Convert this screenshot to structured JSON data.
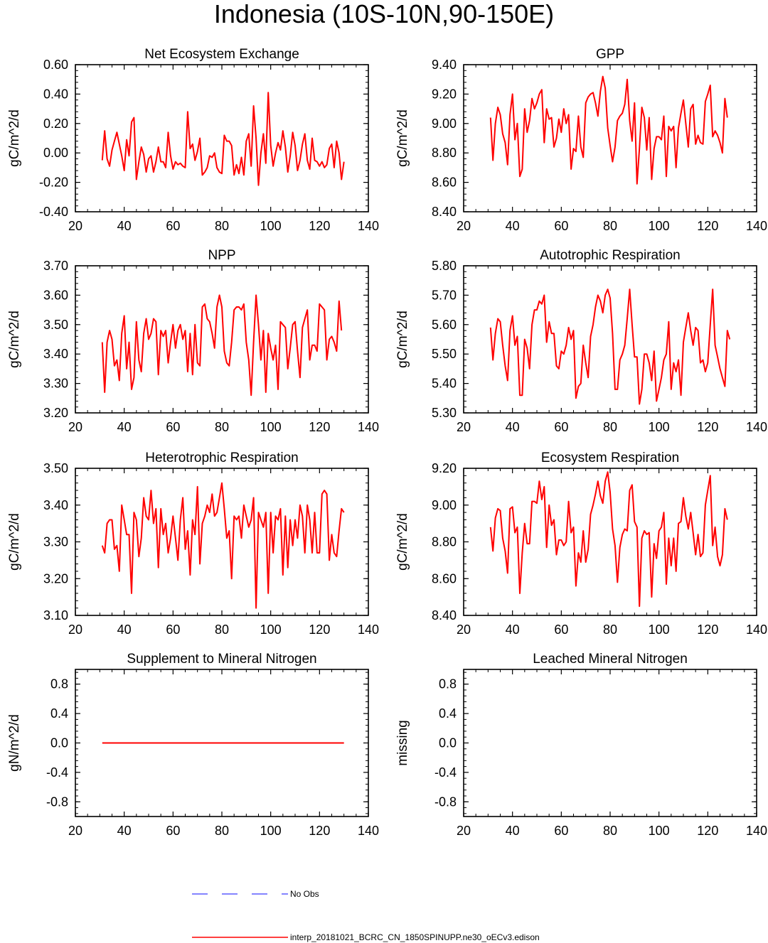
{
  "figure_title": "Indonesia (10S-10N,90-150E)",
  "legend": {
    "obs_label": "No Obs",
    "obs_color": "#3b3bff",
    "model_label": "interp_20181021_BCRC_CN_1850SPINUPP.ne30_oECv3.edison",
    "model_color": "#ff0000"
  },
  "chart_data": [
    {
      "type": "line",
      "title": "Net Ecosystem Exchange",
      "xlabel": "",
      "ylabel": "gC/m^2/d",
      "xlim": [
        20,
        140
      ],
      "ylim": [
        -0.4,
        0.6
      ],
      "xticks": [
        20,
        40,
        60,
        80,
        100,
        120,
        140
      ],
      "xtick_labels": [
        "20",
        "40",
        "60",
        "80",
        "100",
        "120",
        "140"
      ],
      "yticks": [
        -0.4,
        -0.2,
        0.0,
        0.2,
        0.4,
        0.6
      ],
      "ytick_labels": [
        "-0.40",
        "-0.20",
        "0.00",
        "0.20",
        "0.40",
        "0.60"
      ],
      "series": [
        {
          "name": "model",
          "x_start": 31,
          "values": [
            -0.05,
            0.15,
            -0.04,
            -0.09,
            0.02,
            0.08,
            0.14,
            0.06,
            -0.02,
            -0.12,
            0.09,
            -0.02,
            0.21,
            0.24,
            -0.18,
            -0.06,
            0.04,
            -0.01,
            -0.13,
            -0.04,
            -0.02,
            -0.13,
            -0.06,
            0.04,
            -0.06,
            -0.06,
            -0.1,
            0.14,
            -0.02,
            -0.11,
            -0.06,
            -0.08,
            -0.07,
            -0.09,
            -0.1,
            0.28,
            0.03,
            0.06,
            -0.05,
            0.01,
            0.1,
            -0.15,
            -0.13,
            -0.1,
            -0.02,
            -0.03,
            0.0,
            -0.1,
            -0.13,
            -0.14,
            0.12,
            0.08,
            0.08,
            0.05,
            -0.15,
            -0.08,
            -0.14,
            -0.03,
            -0.15,
            0.08,
            0.13,
            -0.09,
            0.32,
            0.1,
            -0.22,
            0.0,
            0.13,
            -0.07,
            0.41,
            0.05,
            -0.09,
            0.0,
            0.07,
            0.02,
            0.15,
            0.04,
            -0.13,
            -0.02,
            0.14,
            0.05,
            -0.12,
            -0.05,
            0.06,
            0.13,
            -0.05,
            -0.11,
            0.1,
            -0.05,
            -0.06,
            -0.09,
            -0.06,
            -0.1,
            -0.08,
            0.03,
            0.06,
            -0.1,
            0.08,
            0.0,
            -0.18,
            -0.06
          ]
        }
      ]
    },
    {
      "type": "line",
      "title": "GPP",
      "xlabel": "",
      "ylabel": "gC/m^2/d",
      "xlim": [
        20,
        140
      ],
      "ylim": [
        8.4,
        9.4
      ],
      "xticks": [
        20,
        40,
        60,
        80,
        100,
        120,
        140
      ],
      "xtick_labels": [
        "20",
        "40",
        "60",
        "80",
        "100",
        "120",
        "140"
      ],
      "yticks": [
        8.4,
        8.6,
        8.8,
        9.0,
        9.2,
        9.4
      ],
      "ytick_labels": [
        "8.40",
        "8.60",
        "8.80",
        "9.00",
        "9.20",
        "9.40"
      ],
      "series": [
        {
          "name": "model",
          "x_start": 31,
          "values": [
            9.04,
            8.75,
            9.0,
            9.11,
            9.06,
            8.93,
            8.87,
            8.72,
            9.06,
            9.2,
            8.89,
            9.0,
            8.64,
            8.69,
            9.1,
            8.94,
            9.02,
            9.17,
            9.1,
            9.14,
            9.2,
            9.23,
            8.87,
            9.1,
            9.03,
            9.04,
            8.84,
            8.9,
            9.03,
            8.94,
            9.1,
            9.0,
            9.06,
            8.69,
            8.83,
            8.81,
            9.05,
            8.84,
            8.77,
            9.14,
            9.18,
            9.2,
            9.21,
            9.14,
            9.05,
            9.22,
            9.32,
            9.24,
            8.97,
            8.85,
            8.74,
            8.84,
            9.02,
            9.05,
            9.07,
            9.13,
            9.3,
            9.02,
            8.88,
            9.14,
            8.59,
            8.83,
            9.11,
            9.04,
            8.82,
            9.04,
            8.62,
            8.83,
            8.91,
            8.91,
            8.89,
            9.05,
            8.64,
            8.98,
            8.95,
            8.98,
            8.7,
            8.97,
            9.07,
            9.16,
            9.0,
            8.84,
            9.1,
            9.13,
            8.86,
            8.92,
            8.87,
            8.86,
            9.15,
            9.2,
            9.26,
            8.91,
            8.95,
            8.92,
            8.87,
            8.8,
            9.17,
            9.04
          ]
        }
      ]
    },
    {
      "type": "line",
      "title": "NPP",
      "xlabel": "",
      "ylabel": "gC/m^2/d",
      "xlim": [
        20,
        140
      ],
      "ylim": [
        3.2,
        3.7
      ],
      "xticks": [
        20,
        40,
        60,
        80,
        100,
        120,
        140
      ],
      "xtick_labels": [
        "20",
        "40",
        "60",
        "80",
        "100",
        "120",
        "140"
      ],
      "yticks": [
        3.2,
        3.3,
        3.4,
        3.5,
        3.6,
        3.7
      ],
      "ytick_labels": [
        "3.20",
        "3.30",
        "3.40",
        "3.50",
        "3.60",
        "3.70"
      ],
      "series": [
        {
          "name": "model",
          "x_start": 31,
          "values": [
            3.44,
            3.27,
            3.44,
            3.48,
            3.45,
            3.36,
            3.38,
            3.31,
            3.47,
            3.53,
            3.35,
            3.44,
            3.28,
            3.32,
            3.51,
            3.38,
            3.34,
            3.47,
            3.52,
            3.45,
            3.47,
            3.52,
            3.51,
            3.33,
            3.48,
            3.46,
            3.48,
            3.37,
            3.44,
            3.5,
            3.42,
            3.48,
            3.5,
            3.45,
            3.48,
            3.34,
            3.47,
            3.33,
            3.5,
            3.37,
            3.36,
            3.56,
            3.57,
            3.52,
            3.51,
            3.47,
            3.42,
            3.56,
            3.6,
            3.56,
            3.41,
            3.37,
            3.36,
            3.44,
            3.55,
            3.56,
            3.56,
            3.55,
            3.57,
            3.44,
            3.38,
            3.26,
            3.44,
            3.6,
            3.5,
            3.38,
            3.48,
            3.27,
            3.47,
            3.42,
            3.38,
            3.43,
            3.28,
            3.51,
            3.5,
            3.49,
            3.35,
            3.42,
            3.5,
            3.51,
            3.41,
            3.32,
            3.49,
            3.52,
            3.55,
            3.38,
            3.43,
            3.43,
            3.41,
            3.57,
            3.56,
            3.55,
            3.38,
            3.45,
            3.46,
            3.44,
            3.41,
            3.58,
            3.48
          ]
        }
      ]
    },
    {
      "type": "line",
      "title": "Autotrophic Respiration",
      "xlabel": "",
      "ylabel": "gC/m^2/d",
      "xlim": [
        20,
        140
      ],
      "ylim": [
        5.3,
        5.8
      ],
      "xticks": [
        20,
        40,
        60,
        80,
        100,
        120,
        140
      ],
      "xtick_labels": [
        "20",
        "40",
        "60",
        "80",
        "100",
        "120",
        "140"
      ],
      "yticks": [
        5.3,
        5.4,
        5.5,
        5.6,
        5.7,
        5.8
      ],
      "ytick_labels": [
        "5.30",
        "5.40",
        "5.50",
        "5.60",
        "5.70",
        "5.80"
      ],
      "series": [
        {
          "name": "model",
          "x_start": 31,
          "values": [
            5.59,
            5.48,
            5.57,
            5.62,
            5.61,
            5.53,
            5.46,
            5.41,
            5.58,
            5.63,
            5.53,
            5.56,
            5.36,
            5.36,
            5.55,
            5.52,
            5.45,
            5.6,
            5.65,
            5.65,
            5.68,
            5.67,
            5.7,
            5.54,
            5.61,
            5.57,
            5.57,
            5.46,
            5.45,
            5.51,
            5.5,
            5.53,
            5.59,
            5.55,
            5.58,
            5.35,
            5.39,
            5.4,
            5.53,
            5.47,
            5.42,
            5.56,
            5.6,
            5.66,
            5.7,
            5.68,
            5.64,
            5.7,
            5.72,
            5.69,
            5.57,
            5.38,
            5.38,
            5.48,
            5.5,
            5.53,
            5.62,
            5.72,
            5.6,
            5.49,
            5.49,
            5.33,
            5.38,
            5.5,
            5.5,
            5.47,
            5.41,
            5.51,
            5.34,
            5.38,
            5.42,
            5.48,
            5.5,
            5.61,
            5.38,
            5.47,
            5.44,
            5.48,
            5.36,
            5.54,
            5.59,
            5.64,
            5.58,
            5.53,
            5.59,
            5.58,
            5.47,
            5.48,
            5.44,
            5.47,
            5.6,
            5.72,
            5.53,
            5.49,
            5.45,
            5.42,
            5.39,
            5.58,
            5.55
          ]
        }
      ]
    },
    {
      "type": "line",
      "title": "Heterotrophic Respiration",
      "xlabel": "",
      "ylabel": "gC/m^2/d",
      "xlim": [
        20,
        140
      ],
      "ylim": [
        3.1,
        3.5
      ],
      "xticks": [
        20,
        40,
        60,
        80,
        100,
        120,
        140
      ],
      "xtick_labels": [
        "20",
        "40",
        "60",
        "80",
        "100",
        "120",
        "140"
      ],
      "yticks": [
        3.1,
        3.2,
        3.3,
        3.4,
        3.5
      ],
      "ytick_labels": [
        "3.10",
        "3.20",
        "3.30",
        "3.40",
        "3.50"
      ],
      "series": [
        {
          "name": "model",
          "x_start": 31,
          "values": [
            3.29,
            3.27,
            3.35,
            3.36,
            3.36,
            3.28,
            3.29,
            3.22,
            3.4,
            3.36,
            3.32,
            3.32,
            3.16,
            3.38,
            3.36,
            3.26,
            3.31,
            3.42,
            3.37,
            3.36,
            3.44,
            3.35,
            3.39,
            3.23,
            3.39,
            3.32,
            3.35,
            3.27,
            3.31,
            3.37,
            3.31,
            3.25,
            3.36,
            3.42,
            3.28,
            3.33,
            3.21,
            3.36,
            3.32,
            3.45,
            3.24,
            3.35,
            3.37,
            3.4,
            3.38,
            3.43,
            3.37,
            3.38,
            3.42,
            3.46,
            3.39,
            3.31,
            3.33,
            3.2,
            3.37,
            3.36,
            3.37,
            3.31,
            3.4,
            3.37,
            3.34,
            3.36,
            3.42,
            3.12,
            3.38,
            3.36,
            3.34,
            3.38,
            3.16,
            3.38,
            3.27,
            3.37,
            3.36,
            3.39,
            3.21,
            3.37,
            3.23,
            3.36,
            3.29,
            3.36,
            3.31,
            3.4,
            3.37,
            3.27,
            3.4,
            3.36,
            3.27,
            3.38,
            3.27,
            3.27,
            3.43,
            3.44,
            3.43,
            3.25,
            3.32,
            3.27,
            3.26,
            3.33,
            3.39,
            3.38
          ]
        }
      ]
    },
    {
      "type": "line",
      "title": "Ecosystem Respiration",
      "xlabel": "",
      "ylabel": "gC/m^2/d",
      "xlim": [
        20,
        140
      ],
      "ylim": [
        8.4,
        9.2
      ],
      "xticks": [
        20,
        40,
        60,
        80,
        100,
        120,
        140
      ],
      "xtick_labels": [
        "20",
        "40",
        "60",
        "80",
        "100",
        "120",
        "140"
      ],
      "yticks": [
        8.4,
        8.6,
        8.8,
        9.0,
        9.2
      ],
      "ytick_labels": [
        "8.40",
        "8.60",
        "8.80",
        "9.00",
        "9.20"
      ],
      "series": [
        {
          "name": "model",
          "x_start": 31,
          "values": [
            8.88,
            8.75,
            8.93,
            8.98,
            8.97,
            8.82,
            8.75,
            8.63,
            8.98,
            8.99,
            8.85,
            8.88,
            8.52,
            8.74,
            8.9,
            8.79,
            8.79,
            9.02,
            9.02,
            9.01,
            9.13,
            9.03,
            9.1,
            8.77,
            9.0,
            8.89,
            8.92,
            8.73,
            8.81,
            8.81,
            8.78,
            8.8,
            9.02,
            8.85,
            8.88,
            8.56,
            8.74,
            8.69,
            8.86,
            8.69,
            8.76,
            8.95,
            9.0,
            9.06,
            9.13,
            9.05,
            9.01,
            9.13,
            9.18,
            9.07,
            8.87,
            8.78,
            8.58,
            8.77,
            8.84,
            8.87,
            8.86,
            9.08,
            9.11,
            8.91,
            8.88,
            8.45,
            8.82,
            8.86,
            8.84,
            8.85,
            8.5,
            8.79,
            8.71,
            8.86,
            8.88,
            8.96,
            8.57,
            8.82,
            8.67,
            8.82,
            8.64,
            8.9,
            8.91,
            9.04,
            8.94,
            8.87,
            8.96,
            8.85,
            8.73,
            8.84,
            8.72,
            8.74,
            9.0,
            9.08,
            9.16,
            8.78,
            8.88,
            8.72,
            8.67,
            8.73,
            8.98,
            8.92
          ]
        }
      ]
    },
    {
      "type": "line",
      "title": "Supplement to Mineral Nitrogen",
      "xlabel": "",
      "ylabel": "gN/m^2/d",
      "xlim": [
        20,
        140
      ],
      "ylim": [
        -1.0,
        1.0
      ],
      "xticks": [
        20,
        40,
        60,
        80,
        100,
        120,
        140
      ],
      "xtick_labels": [
        "20",
        "40",
        "60",
        "80",
        "100",
        "120",
        "140"
      ],
      "yticks": [
        -0.8,
        -0.4,
        0.0,
        0.4,
        0.8
      ],
      "ytick_labels": [
        "-0.8",
        "-0.4",
        "0.0",
        "0.4",
        "0.8"
      ],
      "series": [
        {
          "name": "model",
          "x": [
            31,
            130
          ],
          "values": [
            0.0,
            0.0
          ]
        }
      ]
    },
    {
      "type": "line",
      "title": "Leached Mineral Nitrogen",
      "xlabel": "",
      "ylabel": "missing",
      "xlim": [
        20,
        140
      ],
      "ylim": [
        -1.0,
        1.0
      ],
      "xticks": [
        20,
        40,
        60,
        80,
        100,
        120,
        140
      ],
      "xtick_labels": [
        "20",
        "40",
        "60",
        "80",
        "100",
        "120",
        "140"
      ],
      "yticks": [
        -0.8,
        -0.4,
        0.0,
        0.4,
        0.8
      ],
      "ytick_labels": [
        "-0.8",
        "-0.4",
        "0.0",
        "0.4",
        "0.8"
      ],
      "series": []
    }
  ]
}
